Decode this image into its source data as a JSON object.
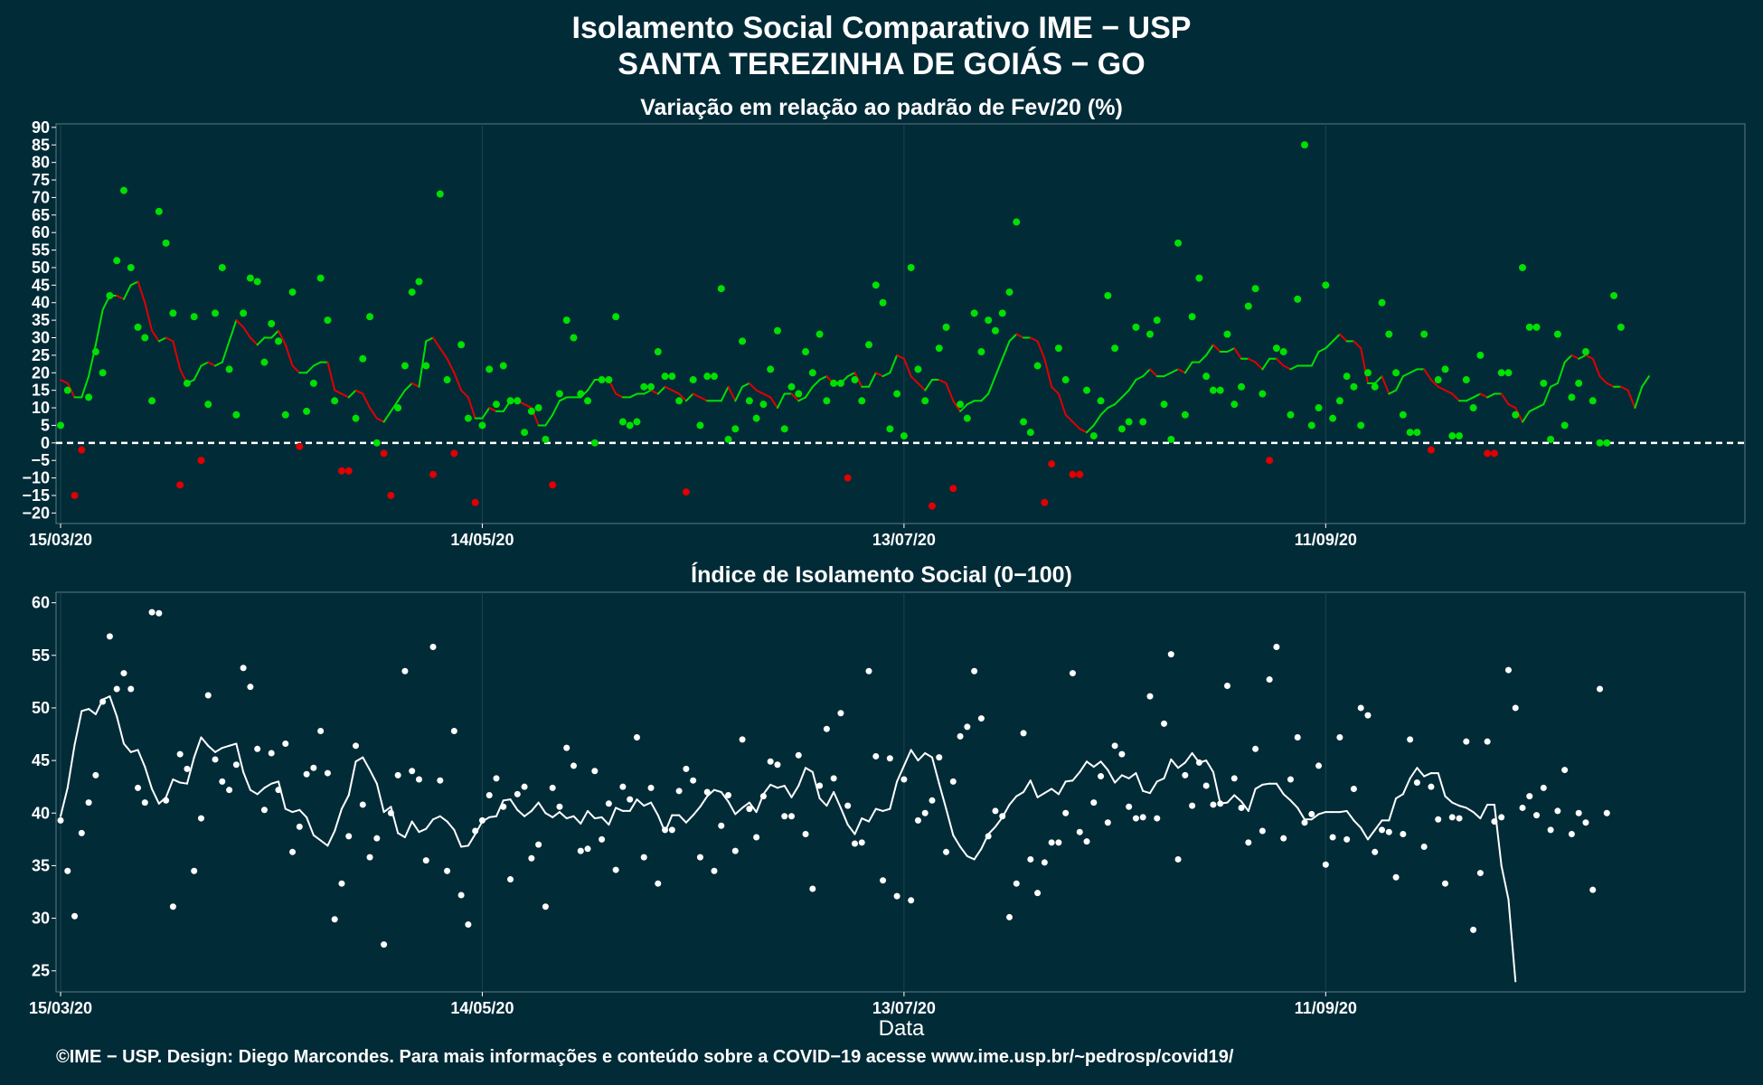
{
  "header": {
    "title_line1": "Isolamento Social Comparativo IME − USP",
    "title_line2": "SANTA TEREZINHA DE GOIÁS − GO"
  },
  "footer": {
    "text": "©IME − USP. Design: Diego Marcondes. Para mais informações e conteúdo sobre a COVID−19 acesse www.ime.usp.br/~pedrosp/covid19/"
  },
  "colors": {
    "background": "#022b38",
    "positive": "#00e000",
    "negative": "#e00000",
    "index": "#ffffff",
    "grid": "#1d4450"
  },
  "chart_data": [
    {
      "type": "scatter",
      "title": "Variação em relação ao padrão de Fev/20 (%)",
      "xlabel": "",
      "ylabel": "",
      "x_start": "15/03/20",
      "x_tick_labels": [
        "15/03/20",
        "14/05/20",
        "13/07/20",
        "11/09/20"
      ],
      "x_tick_day_index": [
        0,
        60,
        120,
        180
      ],
      "ylim": [
        -23,
        91
      ],
      "y_ticks": [
        90,
        85,
        80,
        75,
        70,
        65,
        60,
        55,
        50,
        45,
        40,
        35,
        30,
        25,
        20,
        15,
        10,
        5,
        0,
        -5,
        -10,
        -15,
        -20
      ],
      "reference_line_y": 0,
      "series": [
        {
          "kind": "points",
          "values": [
            5,
            15,
            -15,
            -2,
            13,
            26,
            20,
            42,
            52,
            72,
            50,
            33,
            30,
            12,
            66,
            57,
            37,
            -12,
            17,
            36,
            -5,
            11,
            37,
            50,
            21,
            8,
            37,
            47,
            46,
            23,
            34,
            29,
            8,
            43,
            -1,
            9,
            17,
            47,
            35,
            12,
            -8,
            -8,
            7,
            24,
            36,
            0,
            -3,
            -15,
            10,
            22,
            43,
            46,
            22,
            -9,
            71,
            18,
            -3,
            28,
            7,
            -17,
            5,
            21,
            11,
            22,
            12,
            12,
            3,
            9,
            10,
            1,
            -12,
            14,
            35,
            30,
            14,
            12,
            0,
            18,
            18,
            36,
            6,
            5,
            6,
            16,
            16,
            26,
            19,
            19,
            12,
            -14,
            18,
            5,
            19,
            19,
            44,
            1,
            4,
            29,
            12,
            7,
            11,
            21,
            32,
            4,
            16,
            14,
            26,
            20,
            31,
            12,
            17,
            17,
            -10,
            18,
            12,
            28,
            45,
            40,
            4,
            14,
            2,
            50,
            21,
            12,
            -18,
            27,
            33,
            -13,
            11,
            7,
            37,
            26,
            35,
            32,
            37,
            43,
            63,
            6,
            3,
            22,
            -17,
            -6,
            27,
            18,
            -9,
            -9,
            15,
            2,
            12,
            42,
            27,
            4,
            6,
            33,
            6,
            31,
            35,
            11,
            1,
            57,
            8,
            36,
            47,
            19,
            15,
            15,
            31,
            11,
            16,
            39,
            44,
            14,
            -5,
            27,
            26,
            8,
            41,
            85,
            5,
            10,
            45,
            7,
            12,
            19,
            16,
            5,
            20,
            16,
            40,
            31,
            20,
            8,
            3,
            3,
            31,
            -2,
            18,
            21,
            2,
            2,
            18,
            10,
            25,
            -3,
            -3,
            20,
            20,
            8,
            50,
            33,
            33,
            17,
            1,
            31,
            5,
            13,
            17,
            26,
            12,
            0,
            0,
            42,
            33
          ]
        },
        {
          "kind": "moving-average",
          "values": [
            18,
            17,
            13,
            13,
            19,
            28,
            38,
            42,
            42,
            41,
            45,
            46,
            40,
            32,
            29,
            30,
            29,
            21,
            17,
            18,
            22,
            23,
            22,
            23,
            29,
            35,
            33,
            30,
            28,
            30,
            30,
            32,
            28,
            22,
            20,
            20,
            22,
            23,
            23,
            15,
            14,
            13,
            15,
            14,
            10,
            7,
            6,
            9,
            12,
            15,
            17,
            16,
            29,
            30,
            27,
            24,
            20,
            15,
            13,
            7,
            7,
            10,
            9,
            9,
            12,
            12,
            11,
            10,
            5,
            5,
            8,
            12,
            13,
            13,
            13,
            15,
            18,
            18,
            18,
            14,
            13,
            13,
            14,
            14,
            15,
            14,
            16,
            15,
            14,
            12,
            14,
            13,
            12,
            12,
            12,
            16,
            12,
            16,
            17,
            15,
            14,
            13,
            10,
            14,
            14,
            12,
            13,
            16,
            18,
            19,
            17,
            17,
            19,
            20,
            16,
            16,
            20,
            19,
            20,
            25,
            24,
            19,
            17,
            15,
            18,
            18,
            17,
            12,
            9,
            11,
            12,
            12,
            14,
            19,
            24,
            29,
            31,
            30,
            30,
            29,
            24,
            16,
            14,
            8,
            6,
            4,
            3,
            5,
            8,
            10,
            11,
            13,
            15,
            18,
            19,
            21,
            19,
            19,
            20,
            21,
            20,
            23,
            23,
            25,
            28,
            26,
            26,
            27,
            24,
            24,
            23,
            21,
            24,
            24,
            22,
            21,
            22,
            22,
            22,
            26,
            27,
            29,
            31,
            29,
            29,
            27,
            17,
            17,
            19,
            14,
            15,
            19,
            20,
            21,
            21,
            18,
            16,
            15,
            14,
            12,
            12,
            13,
            14,
            13,
            14,
            14,
            11,
            10,
            6,
            9,
            10,
            11,
            16,
            17,
            23,
            25,
            24,
            25,
            24,
            19,
            17,
            16,
            16,
            15,
            10,
            16,
            19
          ]
        }
      ]
    },
    {
      "type": "scatter",
      "title": "Índice de Isolamento Social (0−100)",
      "xlabel": "Data",
      "ylabel": "",
      "x_start": "15/03/20",
      "x_tick_labels": [
        "15/03/20",
        "14/05/20",
        "13/07/20",
        "11/09/20"
      ],
      "x_tick_day_index": [
        0,
        60,
        120,
        180
      ],
      "ylim": [
        23,
        61
      ],
      "y_ticks": [
        60,
        55,
        50,
        45,
        40,
        35,
        30,
        25
      ],
      "series": [
        {
          "kind": "points",
          "values": [
            39.3,
            34.5,
            30.2,
            38.1,
            41.0,
            43.6,
            50.6,
            56.8,
            51.8,
            53.3,
            51.8,
            42.4,
            41.0,
            59.1,
            59.0,
            41.2,
            31.1,
            45.6,
            44.2,
            34.5,
            39.5,
            51.2,
            45.1,
            43.0,
            42.2,
            44.6,
            53.8,
            52.0,
            46.1,
            40.3,
            45.7,
            42.2,
            46.6,
            36.3,
            38.7,
            43.7,
            44.3,
            47.8,
            43.8,
            29.9,
            33.3,
            37.8,
            46.4,
            40.8,
            35.8,
            37.6,
            27.5,
            40.0,
            43.6,
            53.5,
            44.0,
            43.2,
            35.5,
            55.8,
            43.1,
            34.5,
            47.8,
            32.2,
            29.4,
            38.3,
            39.3,
            41.7,
            43.3,
            40.6,
            33.7,
            41.8,
            42.5,
            35.7,
            37.0,
            31.1,
            42.4,
            40.6,
            46.2,
            44.5,
            36.4,
            36.6,
            44.0,
            37.5,
            40.9,
            34.6,
            42.5,
            41.3,
            47.2,
            35.8,
            42.4,
            33.3,
            38.4,
            38.4,
            42.1,
            44.2,
            43.1,
            35.8,
            42.0,
            34.5,
            38.8,
            41.7,
            36.4,
            47.0,
            40.4,
            37.7,
            41.6,
            44.9,
            44.6,
            39.7,
            39.7,
            45.5,
            38.0,
            32.8,
            42.6,
            48.0,
            43.3,
            49.5,
            40.7,
            37.1,
            37.2,
            53.5,
            45.4,
            33.6,
            45.2,
            32.1,
            43.2,
            31.7,
            39.3,
            40.0,
            41.2,
            45.3,
            36.3,
            43.0,
            47.3,
            48.2,
            53.5,
            49.0,
            37.8,
            40.2,
            39.7,
            30.1,
            33.3,
            47.6,
            35.6,
            32.4,
            35.3,
            37.2,
            37.2,
            40.0,
            53.3,
            38.2,
            37.3,
            41.0,
            43.5,
            39.1,
            46.4,
            45.6,
            40.6,
            39.5,
            39.6,
            51.1,
            39.5,
            48.5,
            55.1,
            35.6,
            43.6,
            40.7,
            44.8,
            42.6,
            40.8,
            40.9,
            52.1,
            43.3,
            40.5,
            37.2,
            46.1,
            38.3,
            52.7,
            55.8,
            37.6,
            43.2,
            47.2,
            39.1,
            39.9,
            44.5,
            35.1,
            37.7,
            47.2,
            37.5,
            42.3,
            50.0,
            49.3,
            36.3,
            38.4,
            38.2,
            33.9,
            38.0,
            47.0,
            42.9,
            36.8,
            42.5,
            39.4,
            33.3,
            39.6,
            39.5,
            46.8,
            28.9,
            34.3,
            46.8,
            39.2,
            39.6,
            53.6,
            50.0,
            40.5,
            41.6,
            39.8,
            42.4,
            38.4,
            40.2,
            44.1,
            38.0,
            40.0,
            39.1,
            32.7,
            51.8,
            40.0
          ]
        },
        {
          "kind": "moving-average",
          "values": [
            39.7,
            42.4,
            46.5,
            49.7,
            49.9,
            49.4,
            50.8,
            51.1,
            49.2,
            46.6,
            45.8,
            46.0,
            44.4,
            42.3,
            40.9,
            41.5,
            43.2,
            42.9,
            42.8,
            45.3,
            47.2,
            46.4,
            45.8,
            46.2,
            46.4,
            46.6,
            43.9,
            42.2,
            41.8,
            42.4,
            42.8,
            43.0,
            40.4,
            40.1,
            40.3,
            39.6,
            37.9,
            37.4,
            36.9,
            38.3,
            40.4,
            41.7,
            44.9,
            45.3,
            44.1,
            42.8,
            40.1,
            40.6,
            38.1,
            37.7,
            39.2,
            38.2,
            38.5,
            39.4,
            39.7,
            39.2,
            38.4,
            36.8,
            36.9,
            38.0,
            39.2,
            39.6,
            39.7,
            41.2,
            41.3,
            40.3,
            39.7,
            40.2,
            41.0,
            40.0,
            39.6,
            40.1,
            39.5,
            39.7,
            39.0,
            40.2,
            39.5,
            39.6,
            38.9,
            40.5,
            40.2,
            40.2,
            41.3,
            40.7,
            41.0,
            39.8,
            38.2,
            39.8,
            39.8,
            39.1,
            39.8,
            40.6,
            41.6,
            42.2,
            42.0,
            41.1,
            39.9,
            40.5,
            41.0,
            40.1,
            41.8,
            42.7,
            42.4,
            42.6,
            41.5,
            42.6,
            44.3,
            43.9,
            41.4,
            40.7,
            42.0,
            40.5,
            38.9,
            38.0,
            39.5,
            39.2,
            40.4,
            40.2,
            40.4,
            43.0,
            44.5,
            46.0,
            45.0,
            45.7,
            45.3,
            42.8,
            40.4,
            37.9,
            36.8,
            35.9,
            35.6,
            36.6,
            38.0,
            38.7,
            39.6,
            40.8,
            41.6,
            42.0,
            43.1,
            41.5,
            41.9,
            42.3,
            41.8,
            43.0,
            43.1,
            43.9,
            44.9,
            44.4,
            44.9,
            44.1,
            42.9,
            43.6,
            43.3,
            43.8,
            42.1,
            41.9,
            43.0,
            43.3,
            45.1,
            44.3,
            44.8,
            45.7,
            44.8,
            45.0,
            43.9,
            40.9,
            41.0,
            41.7,
            41.1,
            40.2,
            42.3,
            42.7,
            42.8,
            42.8,
            41.8,
            41.2,
            40.5,
            39.4,
            39.4,
            39.9,
            40.1,
            40.1,
            40.1,
            40.2,
            39.3,
            38.6,
            37.5,
            38.4,
            39.3,
            39.3,
            41.4,
            41.8,
            43.3,
            44.3,
            43.5,
            43.8,
            43.8,
            41.6,
            41.0,
            40.7,
            40.5,
            40.1,
            39.5,
            40.8,
            40.8,
            35.0,
            31.8,
            24.0
          ]
        }
      ]
    }
  ]
}
